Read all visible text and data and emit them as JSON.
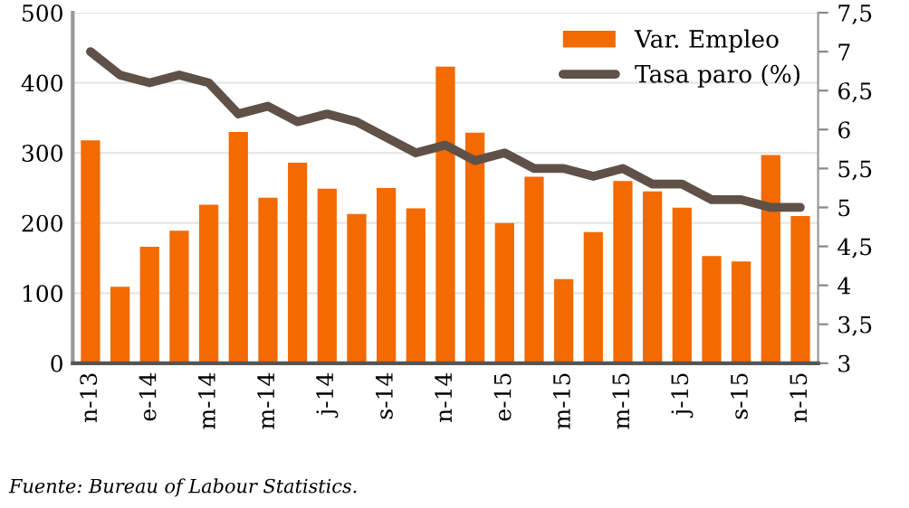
{
  "chart_data": {
    "type": "bar",
    "categories": [
      "n-13",
      null,
      "e-14",
      null,
      "m-14",
      null,
      "m-14",
      null,
      "j-14",
      null,
      "s-14",
      null,
      "n-14",
      null,
      "e-15",
      null,
      "m-15",
      null,
      "m-15",
      null,
      "j-15",
      null,
      "s-15",
      null,
      "n-15"
    ],
    "series": [
      {
        "name": "Var. Empleo",
        "color": "#f26a00",
        "values": [
          318,
          109,
          166,
          189,
          226,
          330,
          236,
          286,
          249,
          213,
          250,
          221,
          423,
          329,
          200,
          266,
          120,
          187,
          260,
          245,
          222,
          153,
          145,
          297,
          210
        ]
      },
      {
        "name": "Tasa paro (%)",
        "type": "line",
        "axis": "y2",
        "color": "#5f5147",
        "values": [
          7.0,
          6.7,
          6.6,
          6.7,
          6.6,
          6.2,
          6.3,
          6.1,
          6.2,
          6.1,
          5.9,
          5.7,
          5.8,
          5.6,
          5.7,
          5.5,
          5.5,
          5.4,
          5.5,
          5.3,
          5.3,
          5.1,
          5.1,
          5.0,
          5.0
        ]
      }
    ],
    "ylim": [
      0,
      500
    ],
    "yticks": [
      0,
      100,
      200,
      300,
      400,
      500
    ],
    "y2lim": [
      3,
      7.5
    ],
    "y2ticks": [
      {
        "value": 3,
        "label": "3"
      },
      {
        "value": 3.5,
        "label": "3,5"
      },
      {
        "value": 4,
        "label": "4"
      },
      {
        "value": 4.5,
        "label": "4,5"
      },
      {
        "value": 5,
        "label": "5"
      },
      {
        "value": 5.5,
        "label": "5,5"
      },
      {
        "value": 6,
        "label": "6"
      },
      {
        "value": 6.5,
        "label": "6,5"
      },
      {
        "value": 7,
        "label": "7"
      },
      {
        "value": 7.5,
        "label": "7,5"
      }
    ],
    "grid": "y",
    "legend": "top right",
    "marker": "none",
    "line_style": "solid",
    "annotations": [
      "Fuente: Bureau of Labour Statistics."
    ]
  }
}
